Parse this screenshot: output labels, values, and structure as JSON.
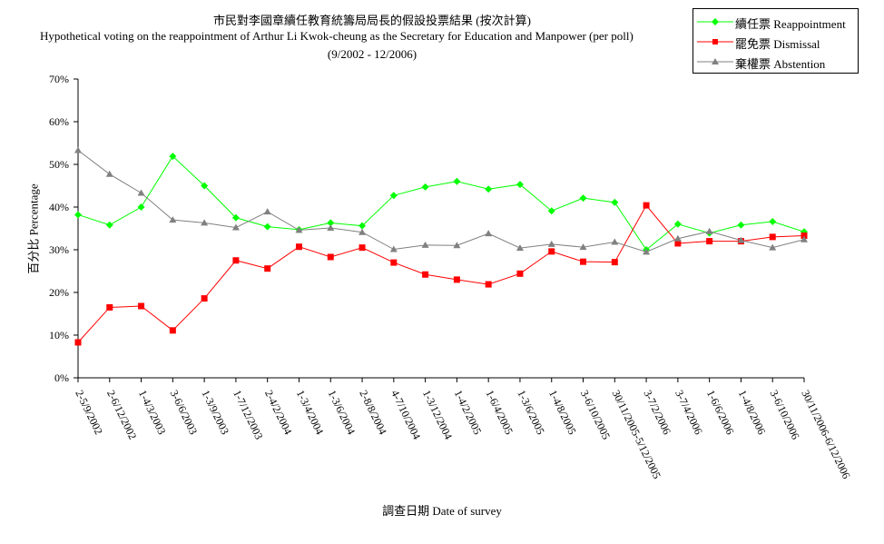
{
  "chart_data": {
    "type": "line",
    "title_zh": "市民對李國章續任教育統籌局局長的假設投票結果 (按次計算)",
    "title_en": "Hypothetical voting on the reappointment of Arthur Li Kwok-cheung as the Secretary for Education and Manpower (per poll)",
    "subtitle": "(9/2002 - 12/2006)",
    "ylabel": "百分比 Percentage",
    "xlabel": "調查日期 Date of survey",
    "ylim": [
      0,
      70
    ],
    "yticks": [
      "0%",
      "10%",
      "20%",
      "30%",
      "40%",
      "50%",
      "60%",
      "70%"
    ],
    "categories": [
      "2-5/9/2002",
      "2-6/12/2002",
      "1-4/3/2003",
      "3-6/6/2003",
      "1-3/9/2003",
      "1-7/12/2003",
      "2-4/2/2004",
      "1-3/4/2004",
      "1-3/6/2004",
      "2-8/8/2004",
      "4-7/10/2004",
      "1-3/12/2004",
      "1-4/2/2005",
      "1-6/4/2005",
      "1-3/6/2005",
      "1-4/8/2005",
      "3-6/10/2005",
      "30/11/2005-5/12/2005",
      "3-7/2/2006",
      "3-7/4/2006",
      "1-6/6/2006",
      "1-4/8/2006",
      "3-6/10/2006",
      "30/11/2006-6/12/2006"
    ],
    "series": [
      {
        "name": "續任票 Reappointment",
        "color": "#00ff00",
        "marker": "diamond",
        "values": [
          38.2,
          35.8,
          40.0,
          51.9,
          45.0,
          37.5,
          35.4,
          34.7,
          36.3,
          35.6,
          42.7,
          44.7,
          46.0,
          44.2,
          45.3,
          39.1,
          42.1,
          41.1,
          30.0,
          36.0,
          33.9,
          35.8,
          36.6,
          34.2
        ]
      },
      {
        "name": "罷免票 Dismissal",
        "color": "#ff0000",
        "marker": "square",
        "values": [
          8.3,
          16.5,
          16.8,
          11.1,
          18.6,
          27.5,
          25.6,
          30.7,
          28.3,
          30.5,
          27.0,
          24.2,
          23.0,
          21.9,
          24.4,
          29.6,
          27.2,
          27.1,
          40.4,
          31.5,
          32.0,
          32.0,
          33.0,
          33.3
        ]
      },
      {
        "name": "棄權票 Abstention",
        "color": "#808080",
        "marker": "triangle",
        "values": [
          53.3,
          47.7,
          43.3,
          37.0,
          36.3,
          35.2,
          38.9,
          34.6,
          35.1,
          34.1,
          30.1,
          31.1,
          31.0,
          33.8,
          30.4,
          31.3,
          30.6,
          31.8,
          29.5,
          32.6,
          34.3,
          32.2,
          30.5,
          32.4
        ]
      }
    ],
    "grid": false,
    "legend": "top-right"
  }
}
